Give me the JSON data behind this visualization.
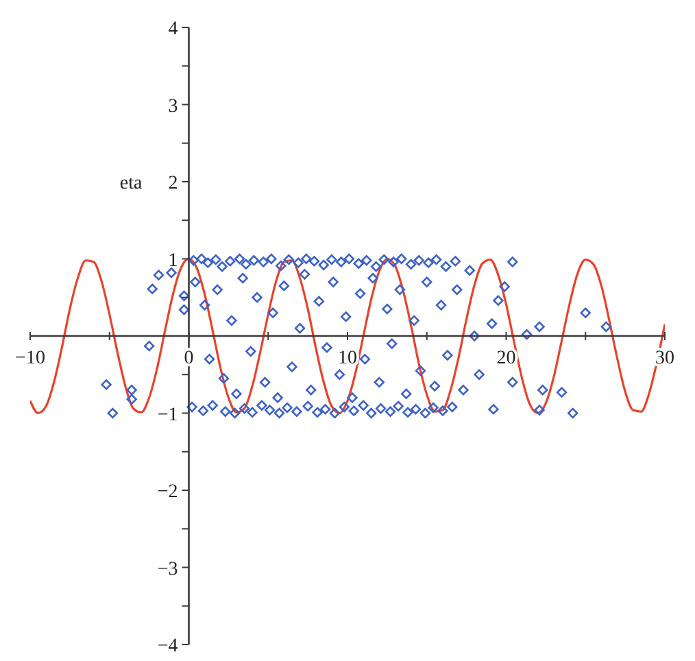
{
  "chart_data": {
    "type": "scatter",
    "ylabel": "eta",
    "xlim": [
      -10,
      30
    ],
    "ylim": [
      -4,
      4
    ],
    "xticks": [
      -10,
      {
        "value": -5,
        "label": null
      },
      0,
      {
        "value": 5,
        "label": null
      },
      10,
      {
        "value": 15,
        "label": null
      },
      20,
      {
        "value": 25,
        "label": null
      },
      30
    ],
    "yticks": [
      -4,
      {
        "value": -3.5,
        "label": null
      },
      -3,
      {
        "value": -2.5,
        "label": null
      },
      -2,
      {
        "value": -1.5,
        "label": null
      },
      -1,
      {
        "value": -0.5,
        "label": null
      },
      {
        "value": 0,
        "label": null
      },
      {
        "value": 0.5,
        "label": null
      },
      1,
      {
        "value": 1.5,
        "label": null
      },
      2,
      {
        "value": 2.5,
        "label": null
      },
      3,
      {
        "value": 3.5,
        "label": null
      },
      4
    ],
    "grid": false,
    "legend": false,
    "series": [
      {
        "color": "#3d62c8",
        "marker": "diamond",
        "x": [
          -1.9,
          -2.3,
          -1.1,
          -2.5,
          -5.2,
          -3.6,
          -3.6,
          -4.8,
          -0.3,
          -0.3,
          25.0,
          26.3,
          24.2,
          23.5,
          22.3,
          22.1,
          22.1,
          21.3,
          20.4,
          20.4,
          19.9,
          19.5,
          19.1,
          19.2,
          18.3,
          0.3,
          0.8,
          1.2,
          1.7,
          2.1,
          2.6,
          3.2,
          3.6,
          4.1,
          4.7,
          5.2,
          5.8,
          6.3,
          6.9,
          7.4,
          7.9,
          8.5,
          9.0,
          9.6,
          10.1,
          10.7,
          11.2,
          11.8,
          12.3,
          12.9,
          13.4,
          14.0,
          14.5,
          15.1,
          15.6,
          16.2,
          16.8,
          0.2,
          0.9,
          1.5,
          2.3,
          2.9,
          3.5,
          4.0,
          4.6,
          5.1,
          5.7,
          6.2,
          6.8,
          7.5,
          8.1,
          8.6,
          9.2,
          9.8,
          10.4,
          11.0,
          11.5,
          12.1,
          12.7,
          13.2,
          13.8,
          14.3,
          14.9,
          15.4,
          16.0,
          16.6,
          0.4,
          1.0,
          1.3,
          1.8,
          2.2,
          2.7,
          3.0,
          3.4,
          3.9,
          4.3,
          4.8,
          5.3,
          5.6,
          6.0,
          6.5,
          7.0,
          7.3,
          7.7,
          8.2,
          8.7,
          9.1,
          9.5,
          9.9,
          10.3,
          10.8,
          11.1,
          11.6,
          12.0,
          12.5,
          12.8,
          13.3,
          13.7,
          14.2,
          14.6,
          15.0,
          15.5,
          15.9,
          16.3,
          16.9,
          17.3,
          17.7,
          18.0
        ],
        "values": [
          0.79,
          0.61,
          0.82,
          -0.13,
          -0.63,
          -0.7,
          -0.82,
          -1.0,
          0.52,
          0.34,
          0.3,
          0.12,
          -1.0,
          -0.73,
          -0.7,
          -0.96,
          0.12,
          0.02,
          -0.6,
          0.96,
          0.64,
          0.46,
          0.16,
          -0.95,
          -0.5,
          0.98,
          1.0,
          0.95,
          0.99,
          0.9,
          0.97,
          1.0,
          0.93,
          0.98,
          0.96,
          1.0,
          0.91,
          0.99,
          0.95,
          1.0,
          0.97,
          0.92,
          0.99,
          0.96,
          1.0,
          0.94,
          0.98,
          0.9,
          0.99,
          0.96,
          1.0,
          0.93,
          0.98,
          0.95,
          0.99,
          0.9,
          0.97,
          -0.92,
          -0.97,
          -0.9,
          -0.98,
          -1.0,
          -0.94,
          -0.99,
          -0.9,
          -0.96,
          -1.0,
          -0.93,
          -0.98,
          -0.91,
          -0.99,
          -0.95,
          -1.0,
          -0.92,
          -0.97,
          -0.9,
          -1.0,
          -0.94,
          -0.98,
          -0.91,
          -0.99,
          -0.95,
          -1.0,
          -0.93,
          -0.97,
          -0.92,
          0.7,
          0.4,
          -0.3,
          0.6,
          -0.55,
          0.2,
          -0.75,
          0.75,
          -0.2,
          0.5,
          -0.6,
          0.3,
          -0.8,
          0.65,
          -0.4,
          0.1,
          0.8,
          -0.7,
          0.45,
          -0.15,
          0.7,
          -0.5,
          0.25,
          -0.8,
          0.55,
          -0.3,
          0.75,
          -0.6,
          0.35,
          -0.1,
          0.6,
          -0.75,
          0.2,
          -0.45,
          0.7,
          -0.65,
          0.4,
          -0.25,
          0.6,
          -0.7,
          0.85,
          0.0
        ]
      },
      {
        "type": "line",
        "color": "#e8432c",
        "line_style": "solid",
        "marker": "none",
        "x": [
          -10,
          -9.5,
          -9,
          -8.5,
          -8,
          -7.5,
          -7,
          -6.5,
          -6,
          -5.5,
          -5,
          -4.5,
          -4,
          -3.5,
          -3,
          -2.5,
          -2,
          -1.5,
          -1,
          -0.5,
          0,
          0.5,
          1,
          1.5,
          2,
          2.5,
          3,
          3.5,
          4,
          4.5,
          5,
          5.5,
          6,
          6.5,
          7,
          7.5,
          8,
          8.5,
          9,
          9.5,
          10,
          10.5,
          11,
          11.5,
          12,
          12.5,
          13,
          13.5,
          14,
          14.5,
          15,
          15.5,
          16,
          16.5,
          17,
          17.5,
          18,
          18.5,
          19,
          19.5,
          20,
          20.5,
          21,
          21.5,
          22,
          22.5,
          23,
          23.5,
          24,
          24.5,
          25,
          25.5,
          26,
          26.5,
          27,
          27.5,
          28,
          28.5,
          29,
          29.5,
          30
        ],
        "values": [
          -0.84,
          -1.0,
          -0.91,
          -0.6,
          -0.15,
          0.35,
          0.75,
          0.98,
          0.96,
          0.71,
          0.28,
          -0.21,
          -0.65,
          -0.94,
          -0.99,
          -0.8,
          -0.42,
          0.07,
          0.54,
          0.88,
          1,
          0.88,
          0.54,
          0.07,
          -0.42,
          -0.8,
          -0.99,
          -0.94,
          -0.65,
          -0.21,
          0.28,
          0.71,
          0.96,
          0.98,
          0.75,
          0.35,
          -0.15,
          -0.6,
          -0.91,
          -1.0,
          -0.84,
          -0.48,
          0.0,
          0.48,
          0.84,
          1.0,
          0.91,
          0.59,
          0.14,
          -0.36,
          -0.76,
          -0.98,
          -0.96,
          -0.7,
          -0.28,
          0.22,
          0.66,
          0.94,
          0.99,
          0.79,
          0.41,
          -0.08,
          -0.55,
          -0.89,
          -1.0,
          -0.87,
          -0.53,
          -0.06,
          0.42,
          0.81,
          0.99,
          0.93,
          0.65,
          0.2,
          -0.29,
          -0.72,
          -0.96,
          -0.98,
          -0.75,
          -0.34,
          0.15
        ]
      }
    ]
  }
}
